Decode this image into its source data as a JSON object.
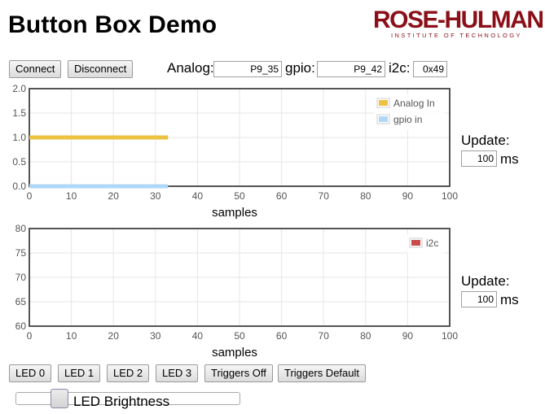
{
  "page": {
    "title": "Button Box Demo",
    "logo": {
      "main": "ROSE-HULMAN",
      "sub": "INSTITUTE OF TECHNOLOGY"
    }
  },
  "toolbar": {
    "connect_label": "Connect",
    "disconnect_label": "Disconnect",
    "analog_label": "Analog:",
    "analog_value": "P9_35",
    "gpio_label": "gpio:",
    "gpio_value": "P9_42",
    "i2c_label": "i2c:",
    "i2c_value": "0x49"
  },
  "plot1": {
    "update_label": "Update:",
    "update_value": "100",
    "unit": "ms"
  },
  "plot2": {
    "update_label": "Update:",
    "update_value": "100",
    "unit": "ms"
  },
  "buttons": {
    "led0": "LED 0",
    "led1": "LED 1",
    "led2": "LED 2",
    "led3": "LED 3",
    "triggers_off": "Triggers Off",
    "triggers_default": "Triggers Default"
  },
  "slider": {
    "label": "LED Brightness",
    "value_fraction": 0.17
  },
  "chart_data": [
    {
      "type": "line",
      "title": "",
      "xlabel": "samples",
      "ylabel": "",
      "xlim": [
        0,
        100
      ],
      "ylim": [
        0,
        2
      ],
      "xticks": [
        "0",
        "10",
        "20",
        "30",
        "40",
        "50",
        "60",
        "70",
        "80",
        "90",
        "100"
      ],
      "yticks": [
        "0.0",
        "0.5",
        "1.0",
        "1.5",
        "2.0"
      ],
      "grid": true,
      "legend": "top-right",
      "series": [
        {
          "name": "Analog In",
          "color": "#edc240",
          "points": [
            [
              0,
              1.0
            ],
            [
              33,
              1.0
            ]
          ]
        },
        {
          "name": "gpio in",
          "color": "#afd8f8",
          "points": [
            [
              0,
              0.0
            ],
            [
              33,
              0.0
            ]
          ]
        }
      ]
    },
    {
      "type": "line",
      "title": "",
      "xlabel": "samples",
      "ylabel": "",
      "xlim": [
        0,
        100
      ],
      "ylim": [
        60,
        80
      ],
      "xticks": [
        "0",
        "10",
        "20",
        "30",
        "40",
        "50",
        "60",
        "70",
        "80",
        "90",
        "100"
      ],
      "yticks": [
        "60",
        "65",
        "70",
        "75",
        "80"
      ],
      "grid": true,
      "legend": "top-right",
      "series": [
        {
          "name": "i2c",
          "color": "#cb4b4b",
          "points": []
        }
      ]
    }
  ]
}
